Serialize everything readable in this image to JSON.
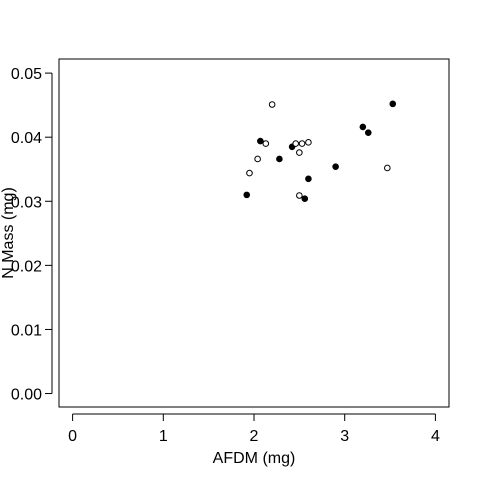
{
  "chart_data": {
    "type": "scatter",
    "title": "",
    "xlabel": "AFDM (mg)",
    "ylabel": "N Mass (mg)",
    "xlim": [
      -0.15,
      4.15
    ],
    "ylim": [
      -0.0021,
      0.0522
    ],
    "x_ticks": [
      0,
      1,
      2,
      3,
      4
    ],
    "x_tick_labels": [
      "0",
      "1",
      "2",
      "3",
      "4"
    ],
    "y_ticks": [
      0,
      0.01,
      0.02,
      0.03,
      0.04,
      0.05
    ],
    "y_tick_labels": [
      "0.00",
      "0.01",
      "0.02",
      "0.03",
      "0.04",
      "0.05"
    ],
    "grid": false,
    "legend": "none",
    "marker_color": "#000000",
    "series": [
      {
        "marker": "filled-circle",
        "points": [
          {
            "x": 1.92,
            "y": 0.031
          },
          {
            "x": 2.07,
            "y": 0.0394
          },
          {
            "x": 2.28,
            "y": 0.0366
          },
          {
            "x": 2.42,
            "y": 0.0385
          },
          {
            "x": 2.56,
            "y": 0.0304
          },
          {
            "x": 2.6,
            "y": 0.0335
          },
          {
            "x": 2.9,
            "y": 0.0354
          },
          {
            "x": 3.2,
            "y": 0.0416
          },
          {
            "x": 3.26,
            "y": 0.0407
          },
          {
            "x": 3.53,
            "y": 0.0452
          }
        ]
      },
      {
        "marker": "open-circle",
        "points": [
          {
            "x": 1.95,
            "y": 0.0344
          },
          {
            "x": 2.04,
            "y": 0.0366
          },
          {
            "x": 2.13,
            "y": 0.039
          },
          {
            "x": 2.2,
            "y": 0.0451
          },
          {
            "x": 2.46,
            "y": 0.039
          },
          {
            "x": 2.5,
            "y": 0.0376
          },
          {
            "x": 2.5,
            "y": 0.0309
          },
          {
            "x": 2.53,
            "y": 0.039
          },
          {
            "x": 2.6,
            "y": 0.0392
          },
          {
            "x": 3.47,
            "y": 0.0352
          }
        ]
      }
    ]
  }
}
